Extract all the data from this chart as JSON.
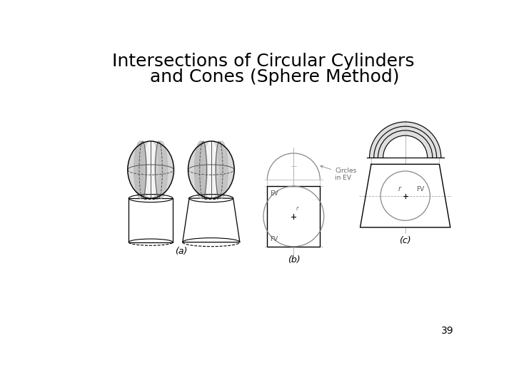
{
  "title_line1": "Intersections of Circular Cylinders",
  "title_line2": "    and Cones (Sphere Method)",
  "title_fontsize": 18,
  "title_fontweight": "normal",
  "background_color": "#ffffff",
  "page_number": "39",
  "label_a": "(a)",
  "label_b": "(b)",
  "label_c": "(c)",
  "gray_light": "#d8d8d8",
  "gray_mid": "#b8b8b8",
  "gray_dark": "#909090",
  "line_color": "#555555"
}
